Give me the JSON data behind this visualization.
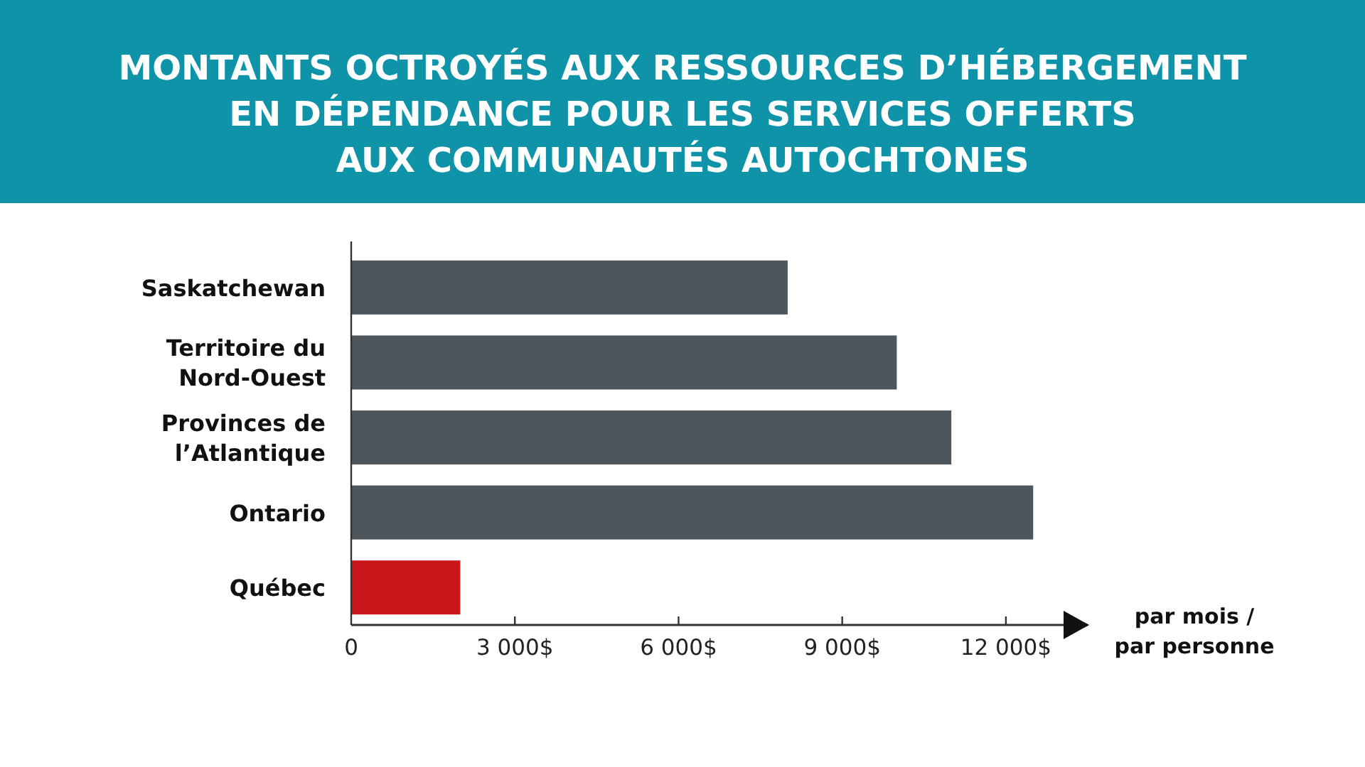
{
  "chart_data": {
    "type": "bar",
    "orientation": "horizontal",
    "title": "MONTANTS OCTROYÉS AUX RESSOURCES D’HÉBERGEMENT\nEN DÉPENDANCE POUR LES SERVICES OFFERTS\nAUX COMMUNAUTÉS AUTOCHTONES",
    "categories": [
      "Saskatchewan",
      "Territoire du Nord-Ouest",
      "Provinces de l’Atlantique",
      "Ontario",
      "Québec"
    ],
    "values": [
      8000,
      10000,
      11000,
      12500,
      2000
    ],
    "colors": [
      "#4d565d",
      "#4d565d",
      "#4d565d",
      "#4d565d",
      "#c8161b"
    ],
    "xlabel": "par mois / par personne",
    "xlim": [
      0,
      13500
    ],
    "xticks": [
      0,
      {
        "value": 3000,
        "label": "3 000$"
      },
      {
        "value": 6000,
        "label": "6 000$"
      },
      {
        "value": 9000,
        "label": "9 000$"
      },
      {
        "value": 12000,
        "label": "12 000$"
      }
    ]
  }
}
